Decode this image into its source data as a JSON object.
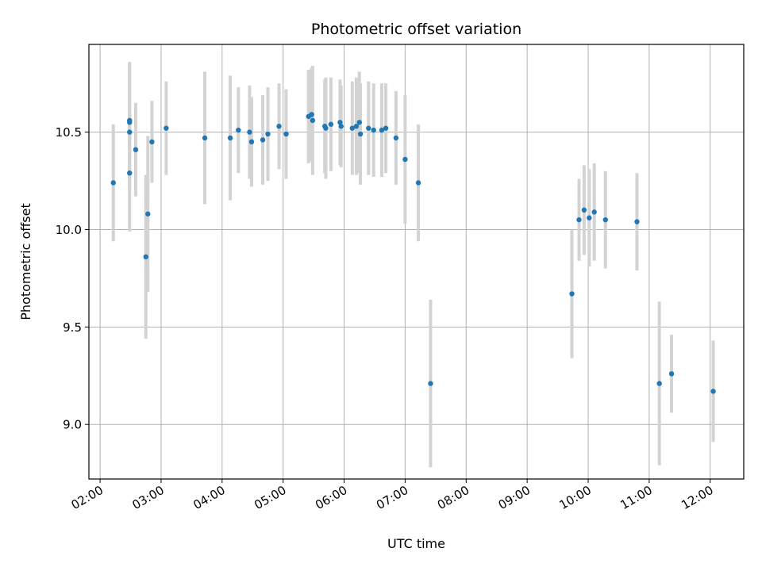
{
  "chart_data": {
    "type": "scatter",
    "title": "Photometric offset variation",
    "xlabel": "UTC time",
    "ylabel": "Photometric offset",
    "x_tick_labels": [
      "02:00",
      "03:00",
      "04:00",
      "05:00",
      "06:00",
      "07:00",
      "08:00",
      "09:00",
      "10:00",
      "11:00",
      "12:00"
    ],
    "y_tick_labels": [
      "9.0",
      "9.5",
      "10.0",
      "10.5"
    ],
    "y_ticks": [
      9.0,
      9.5,
      10.0,
      10.5
    ],
    "xlim": [
      "01:49",
      "12:33"
    ],
    "ylim": [
      8.72,
      10.95
    ],
    "grid": true,
    "colors": {
      "point": "#1f77b4",
      "errorbar": "#d3d3d3",
      "grid": "#b0b0b0"
    },
    "series": [
      {
        "x": [
          "02:13",
          "02:29",
          "02:29",
          "02:29",
          "02:29",
          "02:35",
          "02:45",
          "02:47",
          "02:51",
          "03:05",
          "03:43",
          "04:08",
          "04:16",
          "04:27",
          "04:29",
          "04:40",
          "04:45",
          "04:56",
          "05:03",
          "05:25",
          "05:28",
          "05:28",
          "05:29",
          "05:41",
          "05:42",
          "05:47",
          "05:56",
          "05:57",
          "06:08",
          "06:12",
          "06:15",
          "06:16",
          "06:24",
          "06:29",
          "06:37",
          "06:41",
          "06:51",
          "07:00",
          "07:13",
          "07:25",
          "09:44",
          "09:51",
          "09:56",
          "10:01",
          "10:06",
          "10:17",
          "10:48",
          "11:10",
          "11:22",
          "12:03"
        ],
        "y": [
          10.24,
          10.55,
          10.56,
          10.5,
          10.29,
          10.41,
          9.86,
          10.08,
          10.45,
          10.52,
          10.47,
          10.47,
          10.51,
          10.5,
          10.45,
          10.46,
          10.49,
          10.53,
          10.49,
          10.58,
          10.59,
          10.59,
          10.56,
          10.53,
          10.52,
          10.54,
          10.55,
          10.53,
          10.52,
          10.53,
          10.55,
          10.49,
          10.52,
          10.51,
          10.51,
          10.52,
          10.47,
          10.36,
          10.24,
          9.21,
          9.67,
          10.05,
          10.1,
          10.06,
          10.09,
          10.05,
          10.04,
          9.21,
          9.26,
          9.17
        ],
        "error": [
          0.3,
          0.3,
          0.3,
          0.3,
          0.3,
          0.24,
          0.42,
          0.4,
          0.21,
          0.24,
          0.34,
          0.32,
          0.22,
          0.24,
          0.23,
          0.23,
          0.24,
          0.22,
          0.23,
          0.24,
          0.24,
          0.24,
          0.28,
          0.24,
          0.26,
          0.24,
          0.22,
          0.21,
          0.24,
          0.25,
          0.26,
          0.26,
          0.24,
          0.24,
          0.24,
          0.23,
          0.24,
          0.33,
          0.3,
          0.43,
          0.33,
          0.21,
          0.23,
          0.25,
          0.25,
          0.25,
          0.25,
          0.42,
          0.2,
          0.26
        ]
      }
    ]
  }
}
